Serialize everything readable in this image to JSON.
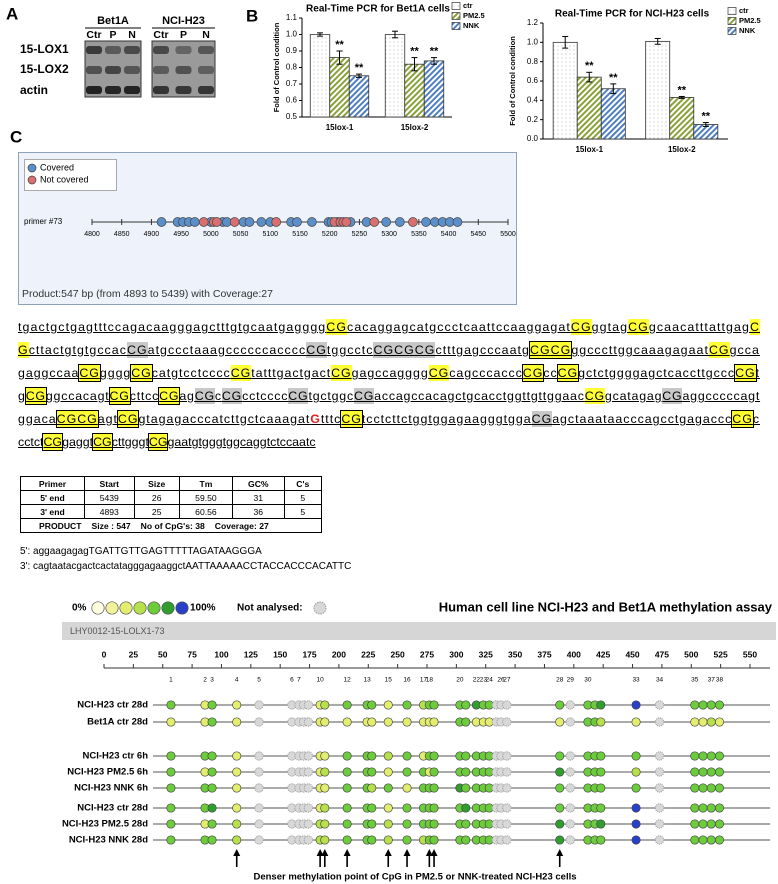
{
  "panel_labels": [
    "A",
    "B",
    "C"
  ],
  "blot": {
    "groups": [
      {
        "name": "Bet1A",
        "lanes": [
          "Ctr",
          "P",
          "N"
        ]
      },
      {
        "name": "NCI-H23",
        "lanes": [
          "Ctr",
          "P",
          "N"
        ]
      }
    ],
    "rows": [
      "15-LOX1",
      "15-LOX2",
      "actin"
    ]
  },
  "chart_data": [
    {
      "type": "bar",
      "title": "Real-Time PCR for Bet1A cells",
      "y_label": "Fold of Control condition",
      "categories": [
        "15lox-1",
        "15lox-2"
      ],
      "series": [
        {
          "name": "ctr",
          "color": "#ffffff",
          "pattern": "dots",
          "values": [
            1.0,
            1.0
          ],
          "errors": [
            0.01,
            0.02
          ]
        },
        {
          "name": "PM2.5",
          "color": "#8aa13a",
          "pattern": "hatch",
          "values": [
            0.86,
            0.82
          ],
          "errors": [
            0.04,
            0.04
          ],
          "annotations": [
            "**",
            "**"
          ]
        },
        {
          "name": "NNK",
          "color": "#4f7fc0",
          "pattern": "hatch",
          "values": [
            0.75,
            0.84
          ],
          "errors": [
            0.01,
            0.02
          ],
          "annotations": [
            "**",
            "**"
          ]
        }
      ],
      "ylim": [
        0.5,
        1.1
      ],
      "yticks": [
        0.5,
        0.6,
        0.7,
        0.8,
        0.9,
        {
          "value": 1,
          "label": "1.0"
        },
        1.1
      ],
      "legend": "top-right"
    },
    {
      "type": "bar",
      "title": "Real-Time PCR for NCI-H23 cells",
      "y_label": "Fold of Control condition",
      "categories": [
        "15lox-1",
        "15lox-2"
      ],
      "series": [
        {
          "name": "ctr",
          "color": "#ffffff",
          "pattern": "dots",
          "values": [
            1.0,
            1.01
          ],
          "errors": [
            0.06,
            0.03
          ]
        },
        {
          "name": "PM2.5",
          "color": "#8aa13a",
          "pattern": "hatch",
          "values": [
            0.64,
            0.43
          ],
          "errors": [
            0.05,
            0.01
          ],
          "annotations": [
            "**",
            "**"
          ]
        },
        {
          "name": "NNK",
          "color": "#4f7fc0",
          "pattern": "hatch",
          "values": [
            0.52,
            0.15
          ],
          "errors": [
            0.05,
            0.02
          ],
          "annotations": [
            "**",
            "**"
          ]
        }
      ],
      "ylim": [
        0,
        1.2
      ],
      "yticks": [
        {
          "value": 0,
          "label": "0.0"
        },
        0.2,
        0.4,
        0.6,
        0.8,
        {
          "value": 1,
          "label": "1.0"
        },
        1.2
      ],
      "legend": "top-right"
    },
    {
      "type": "strip",
      "label": "primer #73",
      "note": "Product:547 bp (from 4893 to 5439) with Coverage:27",
      "series": [
        {
          "name": "Covered",
          "color": "#5b8fc9",
          "x": [
            4917,
            4944,
            4953,
            4963,
            4973,
            5000,
            5020,
            5027,
            5055,
            5065,
            5085,
            5100,
            5135,
            5145,
            5170,
            5198,
            5203,
            5213,
            5235,
            5262,
            5295,
            5318,
            5362,
            5377,
            5390,
            5402,
            5415
          ]
        },
        {
          "name": "Not covered",
          "color": "#d9706f",
          "x": [
            4988,
            5005,
            5010,
            5040,
            5110,
            5208,
            5218,
            5223,
            5228,
            5275,
            5340
          ]
        }
      ],
      "xlim": [
        4800,
        5500
      ],
      "xticks": [
        4800,
        4850,
        4900,
        4950,
        5000,
        5050,
        5100,
        5150,
        5200,
        5250,
        5300,
        5350,
        5400,
        5450,
        5500
      ]
    },
    {
      "type": "dotplot",
      "title": "Human cell line NCI-H23 and Bet1A methylation assay",
      "subtitle": "LHY0012-15-LOLX1-73",
      "scale": {
        "min": {
          "value": 0,
          "label": "0%"
        },
        "max": {
          "value": 100,
          "label": "100%"
        },
        "colors": [
          "#ffffe0",
          "#f2f29a",
          "#e4ee6e",
          "#b8e04c",
          "#6ccc3c",
          "#2f9e2f",
          "#2a3fc8"
        ]
      },
      "not_analysed": {
        "label": "Not analysed:",
        "color": "#d8d8d8"
      },
      "xlim": [
        0,
        550
      ],
      "xticks": [
        0,
        25,
        50,
        75,
        100,
        125,
        150,
        175,
        200,
        225,
        250,
        275,
        300,
        325,
        350,
        375,
        400,
        425,
        450,
        475,
        500,
        525,
        550
      ],
      "positions": [
        57,
        86,
        92,
        113,
        132,
        160,
        166,
        170,
        174,
        184,
        188,
        207,
        224,
        228,
        242,
        258,
        272,
        277,
        281,
        303,
        308,
        317,
        323,
        328,
        334,
        338,
        343,
        388,
        397,
        412,
        418,
        423,
        453,
        473,
        503,
        510,
        517,
        524
      ],
      "cpg_labels": [
        1,
        2,
        3,
        4,
        5,
        6,
        7,
        null,
        null,
        10,
        null,
        12,
        13,
        null,
        15,
        16,
        17,
        18,
        null,
        20,
        null,
        22,
        23,
        24,
        null,
        26,
        27,
        28,
        29,
        30,
        null,
        null,
        33,
        34,
        35,
        null,
        37,
        38
      ],
      "rows": [
        {
          "name": "NCI-H23 ctr 28d",
          "values": [
            67,
            33,
            67,
            33,
            null,
            null,
            null,
            null,
            null,
            33,
            50,
            67,
            67,
            67,
            33,
            67,
            50,
            67,
            67,
            67,
            67,
            83,
            67,
            67,
            null,
            null,
            null,
            67,
            null,
            67,
            67,
            83,
            100,
            null,
            67,
            67,
            67,
            67
          ]
        },
        {
          "name": "Bet1A ctr 28d",
          "values": [
            33,
            33,
            67,
            33,
            null,
            null,
            null,
            null,
            null,
            33,
            33,
            33,
            33,
            33,
            33,
            33,
            33,
            33,
            33,
            67,
            67,
            33,
            33,
            33,
            null,
            null,
            null,
            33,
            null,
            67,
            67,
            50,
            33,
            null,
            33,
            33,
            50,
            33
          ]
        },
        {
          "name": "NCI-H23 ctr 6h",
          "values": [
            67,
            67,
            67,
            33,
            null,
            null,
            null,
            null,
            null,
            33,
            33,
            67,
            67,
            67,
            50,
            67,
            33,
            67,
            67,
            67,
            67,
            67,
            67,
            67,
            null,
            null,
            null,
            67,
            null,
            67,
            67,
            67,
            67,
            null,
            67,
            67,
            67,
            67
          ]
        },
        {
          "name": "NCI-H23 PM2.5 6h",
          "values": [
            67,
            33,
            67,
            33,
            null,
            null,
            null,
            null,
            null,
            33,
            50,
            67,
            67,
            67,
            33,
            67,
            67,
            33,
            67,
            67,
            67,
            67,
            67,
            67,
            null,
            null,
            null,
            83,
            null,
            67,
            67,
            67,
            50,
            null,
            67,
            67,
            67,
            67
          ]
        },
        {
          "name": "NCI-H23 NNK 6h",
          "values": [
            67,
            67,
            67,
            33,
            null,
            null,
            null,
            null,
            null,
            33,
            33,
            67,
            67,
            50,
            67,
            33,
            67,
            67,
            67,
            83,
            67,
            67,
            67,
            67,
            null,
            null,
            null,
            67,
            null,
            67,
            67,
            67,
            67,
            null,
            67,
            67,
            67,
            67
          ]
        },
        {
          "name": "NCI-H23 ctr 28d",
          "values": [
            67,
            67,
            83,
            33,
            null,
            null,
            null,
            null,
            null,
            33,
            50,
            67,
            67,
            67,
            33,
            67,
            67,
            67,
            67,
            67,
            83,
            67,
            67,
            67,
            null,
            null,
            null,
            67,
            null,
            67,
            67,
            67,
            100,
            null,
            67,
            67,
            67,
            67
          ]
        },
        {
          "name": "NCI-H23 PM2.5 28d",
          "values": [
            67,
            33,
            67,
            50,
            null,
            null,
            null,
            null,
            null,
            50,
            50,
            67,
            67,
            67,
            50,
            67,
            67,
            67,
            67,
            67,
            67,
            67,
            67,
            67,
            null,
            null,
            null,
            83,
            null,
            67,
            67,
            83,
            100,
            null,
            67,
            67,
            67,
            67
          ]
        },
        {
          "name": "NCI-H23 NNK 28d",
          "values": [
            67,
            67,
            67,
            50,
            null,
            null,
            null,
            null,
            null,
            50,
            50,
            67,
            67,
            67,
            50,
            67,
            50,
            67,
            67,
            67,
            67,
            67,
            67,
            67,
            null,
            null,
            null,
            83,
            null,
            67,
            67,
            67,
            100,
            null,
            67,
            67,
            67,
            67
          ]
        }
      ],
      "arrows": {
        "cpgs": [
          4,
          10,
          11,
          12,
          15,
          16,
          18,
          19,
          28
        ],
        "text": "Denser methylation point of CpG  in PM2.5 or NNK-treated NCI-H23 cells"
      }
    }
  ],
  "sequence": {
    "lines": [
      [
        "tgactgctgagtttccagacaagggagctttgtgcaatgagggg",
        {
          "text": "CG",
          "bg": "#ffff33"
        },
        "cacaggagcatgccctcaattccaaggagat",
        {
          "text": "CG",
          "bg": "#ffff33"
        },
        "ggtag",
        {
          "text": "CG",
          "bg": "#ffff33"
        },
        "gcaacatttattgag",
        {
          "text": "C",
          "bg": "#ffff33"
        }
      ],
      [
        {
          "text": "G",
          "bg": "#ffff33"
        },
        "cttactgtgtgccac",
        {
          "text": "CG",
          "bg": "#c8c8c8"
        },
        "atgccctaaagccccccacccc",
        {
          "text": "CG",
          "bg": "#c8c8c8"
        },
        "tggcctc",
        {
          "text": "CGCGCG",
          "bg": "#c8c8c8"
        },
        "ctttgagcccaatg",
        {
          "text": "CGCG",
          "bg": "#ffff33",
          "box": true
        },
        "ggcccttggcaaagagaat",
        {
          "text": "CG",
          "bg": "#ffff33"
        },
        "gcca"
      ],
      [
        "gaggccaa",
        {
          "text": "CG",
          "bg": "#ffff33",
          "box": true
        },
        "gggg",
        {
          "text": "CG",
          "bg": "#ffff33",
          "box": true
        },
        "catgtcctcccc",
        {
          "text": "CG",
          "bg": "#ffff33"
        },
        "tatttgactgact",
        {
          "text": "CG",
          "bg": "#ffff33"
        },
        "gagccagggg",
        {
          "text": "CG",
          "bg": "#ffff33"
        },
        "cagcccaccc",
        {
          "text": "CG",
          "bg": "#ffff33",
          "box": true
        },
        "cc",
        {
          "text": "CG",
          "bg": "#ffff33",
          "box": true
        },
        "gctctggggagctcaccttgccc",
        {
          "text": "CG",
          "bg": "#ffff33",
          "box": true
        },
        "t"
      ],
      [
        "g",
        {
          "text": "CG",
          "bg": "#ffff33",
          "box": true
        },
        "ggccacagt",
        {
          "text": "CG",
          "bg": "#ffff33",
          "box": true
        },
        "cttcc",
        {
          "text": "CG",
          "bg": "#ffff33",
          "box": true
        },
        "ag",
        {
          "text": "CG",
          "bg": "#c8c8c8"
        },
        "c",
        {
          "text": "CG",
          "bg": "#c8c8c8"
        },
        "cctcccc",
        {
          "text": "CG",
          "bg": "#c8c8c8"
        },
        "tgctggc",
        {
          "text": "CG",
          "bg": "#c8c8c8"
        },
        "accagccacagctgcacctggttgttggaac",
        {
          "text": "CG",
          "bg": "#ffff33"
        },
        "gcatagag",
        {
          "text": "CG",
          "bg": "#c8c8c8"
        },
        "aggcccccagt"
      ],
      [
        "ggaca",
        {
          "text": "CGCG",
          "bg": "#ffff33",
          "box": true
        },
        "agt",
        {
          "text": "CG",
          "bg": "#ffff33",
          "box": true
        },
        "gtagagacccatcttgctcaaagat",
        {
          "text": "G",
          "color": "#e02020"
        },
        "tttc",
        {
          "text": "CG",
          "bg": "#ffff33",
          "box": true
        },
        "tcctcttctggtggagaagggtgga",
        {
          "text": "CG",
          "bg": "#c8c8c8"
        },
        "agctaaataacccagcctgagaccc",
        {
          "text": "CG",
          "bg": "#ffff33",
          "box": true
        },
        "c"
      ],
      [
        "cctct",
        {
          "text": "CG",
          "bg": "#ffff33",
          "box": true
        },
        "gaggt",
        {
          "text": "CG",
          "bg": "#ffff33",
          "box": true
        },
        "cttgggt",
        {
          "text": "CG",
          "bg": "#ffff33",
          "box": true
        },
        "gaatgtgggtggcaggtctccaatc"
      ]
    ]
  },
  "primer_table": {
    "header": [
      "Primer",
      "Start",
      "Size",
      "Tm",
      "GC%",
      "C's"
    ],
    "rows": [
      [
        "5' end",
        "5439",
        "26",
        "59.50",
        "31",
        "5"
      ],
      [
        "3' end",
        "4893",
        "25",
        "60.56",
        "36",
        "5"
      ]
    ],
    "footer": [
      "PRODUCT",
      "Size : 547",
      "No of CpG's: 38",
      "Coverage: 27"
    ]
  },
  "primers": [
    "5': aggaagagagTGATTGTTGAGTTTTTAGATAAGGGA",
    "3': cagtaatacgactcactatagggagaaggctAATTAAAAACCTACCACCCACATTC"
  ]
}
